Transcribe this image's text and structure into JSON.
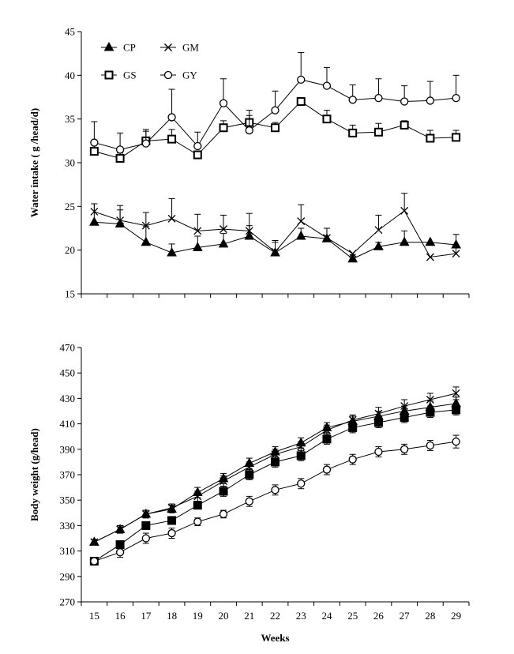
{
  "chart_data": [
    {
      "type": "line",
      "title": "",
      "xlabel": "",
      "ylabel": "Water intake ( g /head/d)",
      "ylim": [
        15,
        45
      ],
      "yticks": [
        15,
        20,
        25,
        30,
        35,
        40,
        45
      ],
      "x": [
        15,
        16,
        17,
        18,
        19,
        20,
        21,
        22,
        23,
        24,
        25,
        26,
        27,
        28,
        29
      ],
      "legend": {
        "position": "top-left",
        "columns": 2
      },
      "series": [
        {
          "name": "CP",
          "marker": "filled-triangle",
          "values": [
            23.2,
            23.0,
            20.9,
            19.7,
            20.3,
            20.7,
            21.6,
            19.7,
            21.6,
            21.3,
            19.0,
            20.4,
            20.9,
            20.9,
            20.6
          ],
          "errors": [
            2.1,
            1.6,
            1.8,
            1.0,
            1.3,
            1.2,
            1.2,
            1.2,
            0.9,
            1.2,
            0.5,
            0.5,
            1.3,
            0.0,
            1.2
          ]
        },
        {
          "name": "GM",
          "marker": "x",
          "values": [
            24.4,
            23.4,
            22.8,
            23.6,
            22.2,
            22.4,
            22.2,
            19.8,
            23.3,
            21.4,
            19.6,
            22.3,
            24.5,
            19.2,
            19.6
          ],
          "errors": [
            0.9,
            1.7,
            1.5,
            2.3,
            1.9,
            1.6,
            2.0,
            1.3,
            1.9,
            1.1,
            0.0,
            1.7,
            2.0,
            0.0,
            0.7
          ]
        },
        {
          "name": "GS",
          "marker": "open-square",
          "values": [
            31.3,
            30.5,
            32.5,
            32.7,
            30.9,
            34.0,
            34.6,
            34.0,
            37.0,
            35.0,
            33.4,
            33.5,
            34.3,
            32.8,
            32.9
          ],
          "errors": [
            0.8,
            0.6,
            1.1,
            1.1,
            0.0,
            0.8,
            0.8,
            0.6,
            0.0,
            1.0,
            0.9,
            1.0,
            0.5,
            0.9,
            0.8
          ]
        },
        {
          "name": "GY",
          "marker": "open-circle",
          "values": [
            32.3,
            31.5,
            32.2,
            35.2,
            31.9,
            36.8,
            33.7,
            36.0,
            39.5,
            38.8,
            37.2,
            37.4,
            37.0,
            37.1,
            37.4
          ],
          "errors": [
            2.4,
            1.9,
            1.6,
            3.2,
            1.6,
            2.8,
            2.3,
            2.2,
            3.1,
            2.1,
            1.7,
            2.2,
            1.8,
            2.2,
            2.6
          ]
        }
      ]
    },
    {
      "type": "line",
      "title": "",
      "xlabel": "Weeks",
      "ylabel": "Body weight (g/head)",
      "ylim": [
        270,
        470
      ],
      "yticks": [
        270,
        290,
        310,
        330,
        350,
        370,
        390,
        410,
        430,
        450,
        470
      ],
      "x": [
        15,
        16,
        17,
        18,
        19,
        20,
        21,
        22,
        23,
        24,
        25,
        26,
        27,
        28,
        29
      ],
      "series": [
        {
          "name": "CP",
          "marker": "filled-triangle",
          "values": [
            317,
            327,
            339,
            343,
            356,
            367,
            379,
            388,
            395,
            407,
            412,
            416,
            420,
            423,
            426
          ],
          "errors": [
            2,
            3,
            3,
            3,
            4,
            4,
            4,
            4,
            4,
            4,
            4,
            4,
            4,
            5,
            5
          ]
        },
        {
          "name": "GM",
          "marker": "x",
          "values": [
            317,
            327,
            339,
            344,
            353,
            365,
            376,
            386,
            392,
            405,
            413,
            418,
            424,
            429,
            434
          ],
          "errors": [
            2,
            3,
            3,
            3,
            4,
            4,
            4,
            4,
            4,
            4,
            4,
            5,
            5,
            5,
            5
          ]
        },
        {
          "name": "GS",
          "marker": "filled-square",
          "values": [
            302,
            315,
            330,
            334,
            346,
            357,
            370,
            380,
            385,
            398,
            407,
            411,
            415,
            419,
            421
          ],
          "errors": [
            3,
            3,
            3,
            3,
            3,
            4,
            4,
            4,
            4,
            4,
            4,
            4,
            4,
            4,
            4
          ]
        },
        {
          "name": "GY",
          "marker": "open-circle",
          "values": [
            302,
            309,
            320,
            324,
            333,
            339,
            349,
            358,
            363,
            374,
            382,
            388,
            390,
            393,
            396
          ],
          "errors": [
            3,
            4,
            4,
            4,
            3,
            3,
            4,
            4,
            4,
            4,
            4,
            4,
            4,
            4,
            5
          ]
        }
      ]
    }
  ]
}
